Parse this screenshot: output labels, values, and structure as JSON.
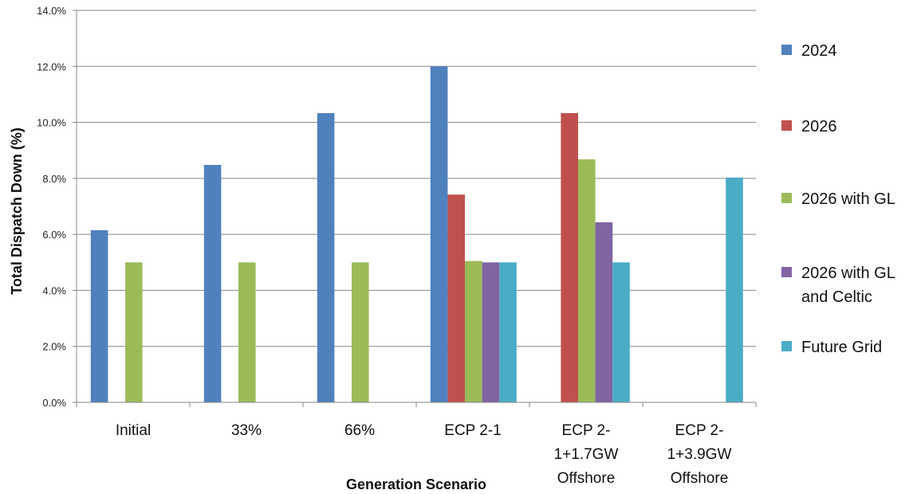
{
  "chart_data": {
    "type": "bar",
    "categories": [
      [
        "Initial"
      ],
      [
        "33%"
      ],
      [
        "66%"
      ],
      [
        "ECP 2-1"
      ],
      [
        "ECP 2-",
        "1+1.7GW",
        "Offshore"
      ],
      [
        "ECP 2-",
        "1+3.9GW",
        "Offshore"
      ]
    ],
    "series": [
      {
        "name": "2024",
        "color": "#4F81BD",
        "values": [
          6.15,
          8.48,
          10.33,
          12.0,
          null,
          null
        ]
      },
      {
        "name": "2026",
        "color": "#C0504D",
        "values": [
          null,
          null,
          null,
          7.42,
          10.33,
          null
        ]
      },
      {
        "name": "2026 with GL",
        "color": "#9BBB59",
        "values": [
          5.0,
          5.0,
          5.0,
          5.05,
          8.68,
          null
        ]
      },
      {
        "name": "2026 with GL and Celtic",
        "legend_lines": [
          "2026 with GL",
          "and Celtic"
        ],
        "color": "#8064A2",
        "values": [
          null,
          null,
          null,
          5.0,
          6.43,
          null
        ]
      },
      {
        "name": "Future Grid",
        "color": "#4BACC6",
        "values": [
          null,
          null,
          null,
          5.0,
          5.0,
          8.03
        ]
      }
    ],
    "xlabel": "Generation Scenario",
    "ylabel": "Total Dispatch Down (%)",
    "ylim": [
      0,
      14
    ],
    "y_ticks": [
      "0.0%",
      "2.0%",
      "4.0%",
      "6.0%",
      "8.0%",
      "10.0%",
      "12.0%",
      "14.0%"
    ],
    "grid": true,
    "legend_position": "right"
  }
}
